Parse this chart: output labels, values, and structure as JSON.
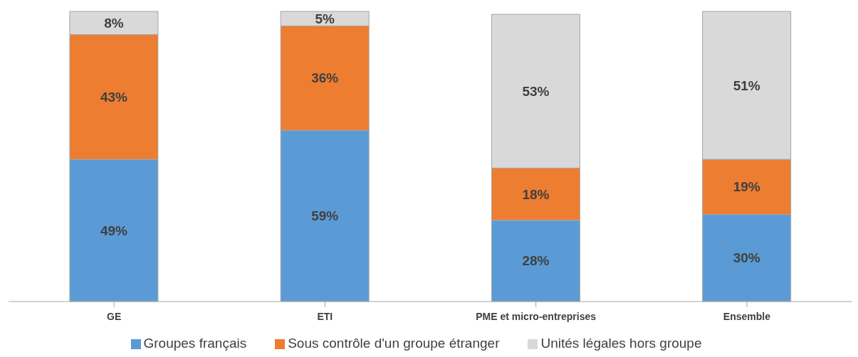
{
  "chart_data": {
    "type": "bar",
    "stacked": true,
    "categories": [
      "GE",
      "ETI",
      "PME et micro-entreprises",
      "Ensemble"
    ],
    "series": [
      {
        "name": "Groupes français",
        "color": "#5b9bd5",
        "values": [
          49,
          59,
          28,
          30
        ],
        "value_labels": [
          "49%",
          "59%",
          "28%",
          "30%"
        ]
      },
      {
        "name": "Sous contrôle d'un groupe étranger",
        "color": "#ed7d31",
        "values": [
          43,
          36,
          18,
          19
        ],
        "value_labels": [
          "43%",
          "36%",
          "18%",
          "19%"
        ]
      },
      {
        "name": "Unités légales hors groupe",
        "color": "#d9d9d9",
        "values": [
          8,
          5,
          53,
          51
        ],
        "value_labels": [
          "8%",
          "5%",
          "53%",
          "51%"
        ]
      }
    ],
    "tick_labels": "x",
    "grid": false,
    "legend": "bottom"
  }
}
